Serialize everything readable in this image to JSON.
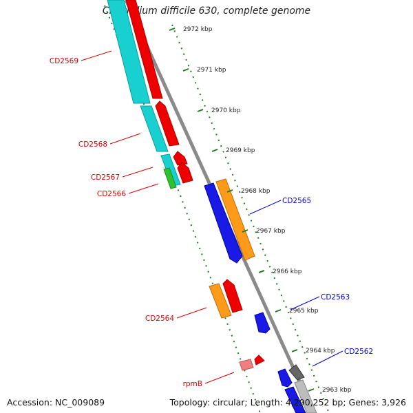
{
  "title": "Clostridium difficile 630, complete genome",
  "footer": {
    "accession": "Accession: NC_009089",
    "summary": "Topology: circular; Length: 4,290,252 bp; Genes: 3,926"
  },
  "colors": {
    "background": "#ffffff",
    "backbone": "#8c8c8c",
    "tick_dots": "#1f7a1f",
    "label_red": "#d40000",
    "label_blue": "#0000cc",
    "cyan": "#19d0d0",
    "red": "#f00000",
    "blue": "#1a1ae6",
    "orange": "#ff9a1a",
    "green": "#30c030",
    "gray": "#777777",
    "light_gray": "#bdbdbd",
    "pink": "#f08080"
  },
  "kbp_ticks": [
    "2972 kbp",
    "2971 kbp",
    "2970 kbp",
    "2969 kbp",
    "2968 kbp",
    "2967 kbp",
    "2966 kbp",
    "2965 kbp",
    "2964 kbp",
    "2963 kbp"
  ],
  "gene_labels": [
    {
      "id": "CD2569",
      "text": "CD2569",
      "strand": "minus"
    },
    {
      "id": "CD2568",
      "text": "CD2568",
      "strand": "minus"
    },
    {
      "id": "CD2567",
      "text": "CD2567",
      "strand": "minus"
    },
    {
      "id": "CD2566",
      "text": "CD2566",
      "strand": "minus"
    },
    {
      "id": "CD2564",
      "text": "CD2564",
      "strand": "minus"
    },
    {
      "id": "rpmB",
      "text": "rpmB",
      "strand": "minus"
    },
    {
      "id": "CD2565",
      "text": "CD2565",
      "strand": "plus"
    },
    {
      "id": "CD2563",
      "text": "CD2563",
      "strand": "plus"
    },
    {
      "id": "CD2562",
      "text": "CD2562",
      "strand": "plus"
    }
  ]
}
